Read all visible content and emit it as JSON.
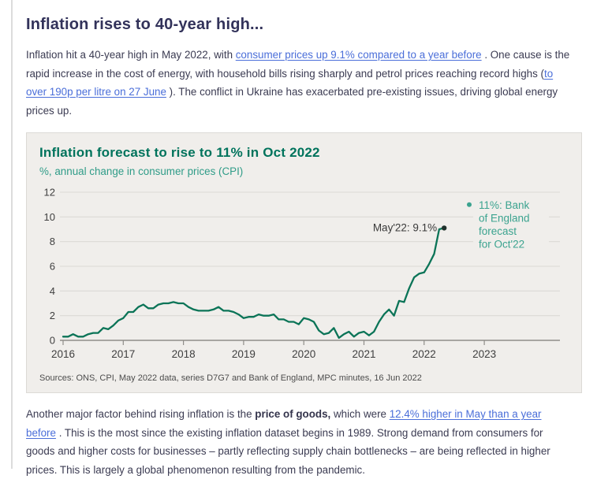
{
  "article": {
    "title": "Inflation rises to 40-year high...",
    "intro": {
      "pre": "Inflation hit a 40-year high in May 2022, with ",
      "link1": "consumer prices up 9.1% compared to a year before",
      "mid": " . One cause is the rapid increase in the cost of energy, with household bills rising sharply and petrol prices reaching record highs (",
      "link2": "to over 190p per litre on 27 June",
      "post": " ). The conflict in Ukraine has exacerbated pre-existing issues, driving global energy prices up."
    },
    "para2": {
      "pre": "Another major factor behind rising inflation is the ",
      "bold": "price of goods,",
      "mid": " which were ",
      "link": "12.4% higher in May than a year before",
      "post": " . This is the most since the existing inflation dataset begins in 1989. Strong demand from consumers for goods and higher costs for businesses – partly reflecting supply chain bottlenecks – are being reflected in higher prices. This is largely a global phenomenon resulting from the pandemic."
    }
  },
  "chart_data": {
    "type": "line",
    "title": "Inflation forecast to rise to 11% in Oct 2022",
    "subtitle": "%, annual change in consumer prices (CPI)",
    "source": "Sources: ONS, CPI, May 2022 data, series D7G7 and Bank of England, MPC minutes, 16 Jun 2022",
    "x_tick_years": [
      2016,
      2017,
      2018,
      2019,
      2020,
      2021,
      2022,
      2023
    ],
    "y_ticks": [
      0,
      2,
      4,
      6,
      8,
      10,
      12
    ],
    "ylim": [
      0,
      12
    ],
    "grid": true,
    "legend": "none",
    "series": [
      {
        "name": "CPI annual change (%), monthly Jan 2016 - May 2022",
        "monthly_values": [
          0.3,
          0.3,
          0.5,
          0.3,
          0.3,
          0.5,
          0.6,
          0.6,
          1.0,
          0.9,
          1.2,
          1.6,
          1.8,
          2.3,
          2.3,
          2.7,
          2.9,
          2.6,
          2.6,
          2.9,
          3.0,
          3.0,
          3.1,
          3.0,
          3.0,
          2.7,
          2.5,
          2.4,
          2.4,
          2.4,
          2.5,
          2.7,
          2.4,
          2.4,
          2.3,
          2.1,
          1.8,
          1.9,
          1.9,
          2.1,
          2.0,
          2.0,
          2.1,
          1.7,
          1.7,
          1.5,
          1.5,
          1.3,
          1.8,
          1.7,
          1.5,
          0.8,
          0.5,
          0.6,
          1.0,
          0.2,
          0.5,
          0.7,
          0.3,
          0.6,
          0.7,
          0.4,
          0.7,
          1.5,
          2.1,
          2.5,
          2.0,
          3.2,
          3.1,
          4.2,
          5.1,
          5.4,
          5.5,
          6.2,
          7.0,
          9.0,
          9.1
        ]
      }
    ],
    "annotations": [
      {
        "type": "data-point-label",
        "label": "May'22: 9.1%",
        "x_year": 2022.333,
        "y": 9.1
      },
      {
        "type": "forecast-marker",
        "label_lines": [
          "11%: Bank",
          "of England",
          "forecast",
          "for Oct'22"
        ],
        "x_year": 2022.75,
        "y": 11
      }
    ],
    "colors": {
      "line": "#0b7457",
      "end_dot": "#20302b",
      "grid": "#dcdad6",
      "axis": "#8f8d89",
      "tick_label": "#3f3f3f",
      "point_label": "#3a3a3a",
      "forecast": "#3ba38f",
      "panel_bg": "#f0eeeb"
    }
  }
}
